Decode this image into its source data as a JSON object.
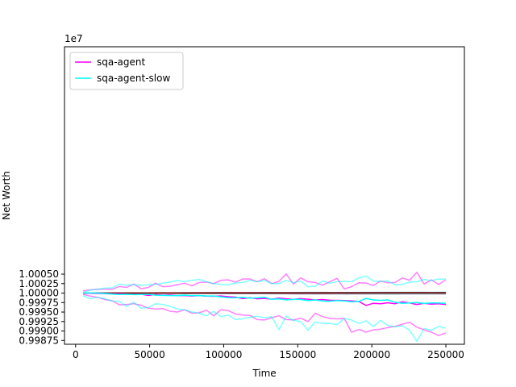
{
  "chart_data": {
    "type": "line",
    "title": "",
    "xlabel": "Time",
    "ylabel": "Net Worth",
    "offset_text": "1e7",
    "xlim": [
      -7500,
      262500
    ],
    "ylim": [
      9998650,
      10006500
    ],
    "xticks": [
      0,
      50000,
      100000,
      150000,
      200000,
      250000
    ],
    "xtick_labels": [
      "0",
      "50000",
      "100000",
      "150000",
      "200000",
      "250000"
    ],
    "yticks": [
      9998750,
      9999000,
      9999250,
      9999500,
      9999750,
      10000000,
      10000250,
      10000500
    ],
    "ytick_labels": [
      "0.99875",
      "0.99900",
      "0.99925",
      "0.99950",
      "0.99975",
      "1.00000",
      "1.00025",
      "1.00050"
    ],
    "grid": false,
    "legend_position": "top-left",
    "colors": {
      "sqa_agent": "#ff00ff",
      "sqa_agent_slow": "#00ffff"
    },
    "legend": [
      {
        "label": "sqa-agent",
        "color": "#ff00ff"
      },
      {
        "label": "sqa-agent-slow",
        "color": "#00ffff"
      }
    ],
    "series": [
      {
        "name": "sqa-agent",
        "role": "upper",
        "color": "#ff00ff",
        "opacity": 0.5,
        "width": 1.5,
        "values": [
          10000060,
          10000085,
          10000100,
          10000105,
          10000100,
          10000175,
          10000150,
          10000240,
          10000115,
          10000150,
          10000260,
          10000170,
          10000180,
          10000225,
          10000260,
          10000190,
          10000280,
          10000290,
          10000250,
          10000340,
          10000350,
          10000290,
          10000370,
          10000375,
          10000300,
          10000380,
          10000250,
          10000310,
          10000505,
          10000240,
          10000400,
          10000300,
          10000280,
          10000210,
          10000300,
          10000390,
          10000110,
          10000170,
          10000270,
          10000265,
          10000200,
          10000320,
          10000270,
          10000280,
          10000400,
          10000340,
          10000550,
          10000240,
          10000350,
          10000230,
          10000350
        ]
      },
      {
        "name": "sqa-agent",
        "role": "mean",
        "color": "#ff00ff",
        "opacity": 1,
        "width": 1.5,
        "values": [
          10000000,
          9999995,
          9999990,
          9999985,
          9999980,
          9999980,
          9999975,
          9999965,
          9999970,
          9999940,
          9999960,
          9999945,
          9999950,
          9999935,
          9999935,
          9999925,
          9999935,
          9999920,
          9999915,
          9999925,
          9999905,
          9999895,
          9999855,
          9999880,
          9999850,
          9999860,
          9999840,
          9999870,
          9999850,
          9999835,
          9999855,
          9999840,
          9999820,
          9999830,
          9999810,
          9999810,
          9999805,
          9999795,
          9999780,
          9999675,
          9999730,
          9999720,
          9999745,
          9999720,
          9999770,
          9999740,
          9999700,
          9999730,
          9999710,
          9999720,
          9999700
        ]
      },
      {
        "name": "sqa-agent",
        "role": "lower",
        "color": "#ff00ff",
        "opacity": 0.5,
        "width": 1.5,
        "values": [
          9999970,
          9999920,
          9999890,
          9999830,
          9999800,
          9999690,
          9999700,
          9999720,
          9999680,
          9999600,
          9999580,
          9999590,
          9999520,
          9999500,
          9999560,
          9999470,
          9999480,
          9999550,
          9999400,
          9999560,
          9999540,
          9999450,
          9999420,
          9999410,
          9999300,
          9999290,
          9999350,
          9999400,
          9999300,
          9999290,
          9999340,
          9999250,
          9999470,
          9999380,
          9999330,
          9999320,
          9999330,
          9998970,
          9999040,
          9998970,
          9999030,
          9999050,
          9999090,
          9999120,
          9999180,
          9999230,
          9999100,
          9999030,
          9998970,
          9998880,
          9998950
        ]
      },
      {
        "name": "sqa-agent-slow",
        "role": "upper",
        "color": "#00ffff",
        "opacity": 0.5,
        "width": 1.5,
        "values": [
          10000020,
          10000080,
          10000100,
          10000130,
          10000140,
          10000240,
          10000210,
          10000225,
          10000210,
          10000220,
          10000230,
          10000260,
          10000290,
          10000330,
          10000300,
          10000340,
          10000360,
          10000300,
          10000250,
          10000230,
          10000220,
          10000265,
          10000280,
          10000340,
          10000300,
          10000330,
          10000250,
          10000250,
          10000340,
          10000270,
          10000320,
          10000170,
          10000180,
          10000320,
          10000260,
          10000300,
          10000310,
          10000300,
          10000400,
          10000450,
          10000320,
          10000310,
          10000320,
          10000220,
          10000230,
          10000290,
          10000300,
          10000360,
          10000330,
          10000370,
          10000370
        ]
      },
      {
        "name": "sqa-agent-slow",
        "role": "mean",
        "color": "#00ffff",
        "opacity": 1,
        "width": 1.5,
        "values": [
          10000000,
          10000005,
          10000000,
          9999990,
          9999975,
          9999965,
          9999970,
          9999960,
          9999965,
          9999970,
          9999945,
          9999940,
          9999935,
          9999935,
          9999945,
          9999935,
          9999935,
          9999925,
          9999925,
          9999900,
          9999880,
          9999875,
          9999890,
          9999870,
          9999875,
          9999890,
          9999835,
          9999845,
          9999820,
          9999835,
          9999830,
          9999800,
          9999820,
          9999790,
          9999785,
          9999800,
          9999795,
          9999770,
          9999780,
          9999860,
          9999820,
          9999810,
          9999820,
          9999760,
          9999730,
          9999740,
          9999750,
          9999730,
          9999740,
          9999740,
          9999730
        ]
      },
      {
        "name": "sqa-agent-slow",
        "role": "lower",
        "color": "#00ffff",
        "opacity": 0.5,
        "width": 1.5,
        "values": [
          9999930,
          9999850,
          9999890,
          9999850,
          9999790,
          9999780,
          9999650,
          9999760,
          9999600,
          9999620,
          9999720,
          9999700,
          9999650,
          9999580,
          9999560,
          9999500,
          9999470,
          9999400,
          9999520,
          9999380,
          9999420,
          9999300,
          9999320,
          9999360,
          9999390,
          9999350,
          9999380,
          9999040,
          9999390,
          9999280,
          9999250,
          9999020,
          9999240,
          9999200,
          9999200,
          9999170,
          9999330,
          9999290,
          9999200,
          9999270,
          9999120,
          9999280,
          9999150,
          9999110,
          9999140,
          9999020,
          9998730,
          9999070,
          9999020,
          9999120,
          9999080
        ]
      }
    ],
    "background_runs": {
      "count": 60,
      "spread": 40,
      "colors": [
        "#1f77b4",
        "#ff7f0e",
        "#2ca02c",
        "#d62728",
        "#9467bd",
        "#8c564b",
        "#e377c2",
        "#7f7f7f",
        "#bcbd22",
        "#17becf"
      ]
    }
  }
}
